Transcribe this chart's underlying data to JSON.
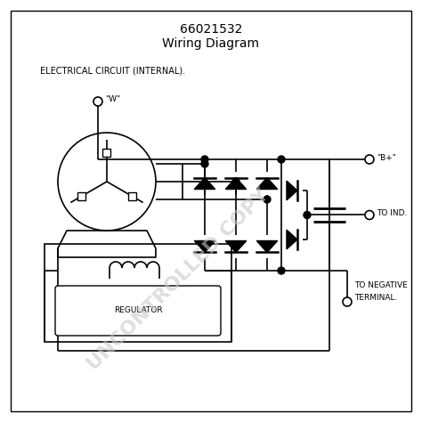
{
  "title_line1": "66021532",
  "title_line2": "Wiring Diagram",
  "subtitle": "ELECTRICAL CIRCUIT (INTERNAL).",
  "label_w": "\"W\"",
  "label_bp": "\"B+\"",
  "label_ind": "TO IND.",
  "label_neg1": "TO NEGATIVE",
  "label_neg2": "TERMINAL.",
  "label_reg": "REGULATOR",
  "watermark": "UNCONTROLLED COPY",
  "bg_color": "#ffffff",
  "line_color": "#000000",
  "watermark_color": "#c8c8c8"
}
